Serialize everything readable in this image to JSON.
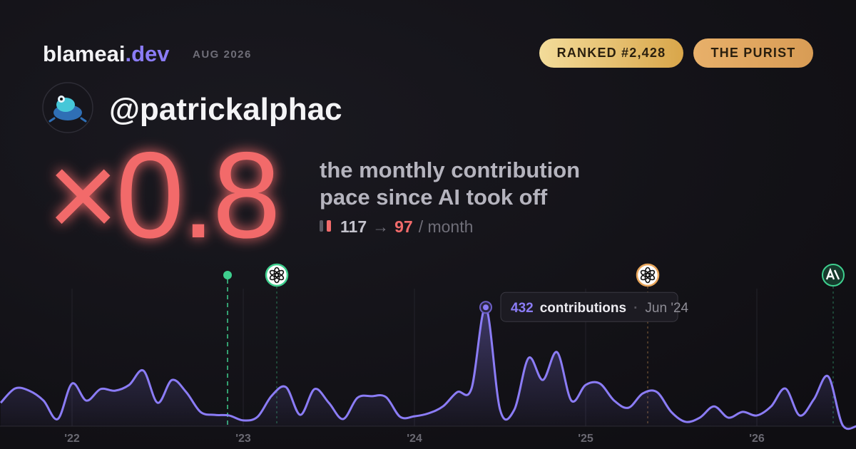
{
  "header": {
    "brand": "blameai",
    "brand_tld": ".dev",
    "date": "AUG 2026",
    "badges": [
      "RANKED #2,428",
      "THE PURIST"
    ]
  },
  "user": {
    "handle": "@patrickalphac"
  },
  "headline": {
    "value": "×0.8",
    "description": [
      "the monthly contribution",
      "pace since AI took off"
    ],
    "before": 117,
    "arrow": "→",
    "after": 97,
    "unit": "/ month"
  },
  "chart_data": {
    "type": "area",
    "x": [
      "2021-08",
      "2021-09",
      "2021-10",
      "2021-11",
      "2021-12",
      "2022-01",
      "2022-02",
      "2022-03",
      "2022-04",
      "2022-05",
      "2022-06",
      "2022-07",
      "2022-08",
      "2022-09",
      "2022-10",
      "2022-11",
      "2022-12",
      "2023-01",
      "2023-02",
      "2023-03",
      "2023-04",
      "2023-05",
      "2023-06",
      "2023-07",
      "2023-08",
      "2023-09",
      "2023-10",
      "2023-11",
      "2023-12",
      "2024-01",
      "2024-02",
      "2024-03",
      "2024-04",
      "2024-05",
      "2024-06",
      "2024-07",
      "2024-08",
      "2024-09",
      "2024-10",
      "2024-11",
      "2024-12",
      "2025-01",
      "2025-02",
      "2025-03",
      "2025-04",
      "2025-05",
      "2025-06",
      "2025-07",
      "2025-08",
      "2025-09",
      "2025-10",
      "2025-11",
      "2025-12",
      "2026-01",
      "2026-02",
      "2026-03",
      "2026-04",
      "2026-05",
      "2026-06",
      "2026-07",
      "2026-08"
    ],
    "series": [
      {
        "name": "contributions",
        "color": "#8b7cf6",
        "values": [
          85,
          137,
          129,
          93,
          26,
          155,
          93,
          135,
          129,
          150,
          202,
          85,
          168,
          124,
          52,
          41,
          39,
          21,
          34,
          111,
          142,
          41,
          135,
          85,
          26,
          103,
          109,
          106,
          34,
          36,
          47,
          72,
          124,
          137,
          432,
          60,
          60,
          248,
          168,
          269,
          93,
          150,
          155,
          93,
          67,
          119,
          124,
          52,
          16,
          31,
          72,
          31,
          52,
          39,
          72,
          137,
          39,
          98,
          181,
          5,
          0
        ]
      }
    ],
    "ylim": [
      0,
      500
    ],
    "xticks": [
      {
        "value": "2022-01",
        "label": "'22"
      },
      {
        "value": "2023-01",
        "label": "'23"
      },
      {
        "value": "2024-01",
        "label": "'24"
      },
      {
        "value": "2025-01",
        "label": "'25"
      },
      {
        "value": "2026-01",
        "label": "'26"
      }
    ],
    "grid": true,
    "events": [
      {
        "x": "2022-12",
        "color": "#3ecf8e",
        "icon": "dot"
      },
      {
        "x": "2023-03",
        "color": "#3ecf8e",
        "icon": "openai"
      },
      {
        "x": "2025-05",
        "color": "#e8a55a",
        "icon": "openai"
      },
      {
        "x": "2026-06",
        "color": "#3ecf8e",
        "icon": "anthropic"
      }
    ],
    "tooltip": {
      "at": "2024-06",
      "date": "Jun '24"
    }
  }
}
